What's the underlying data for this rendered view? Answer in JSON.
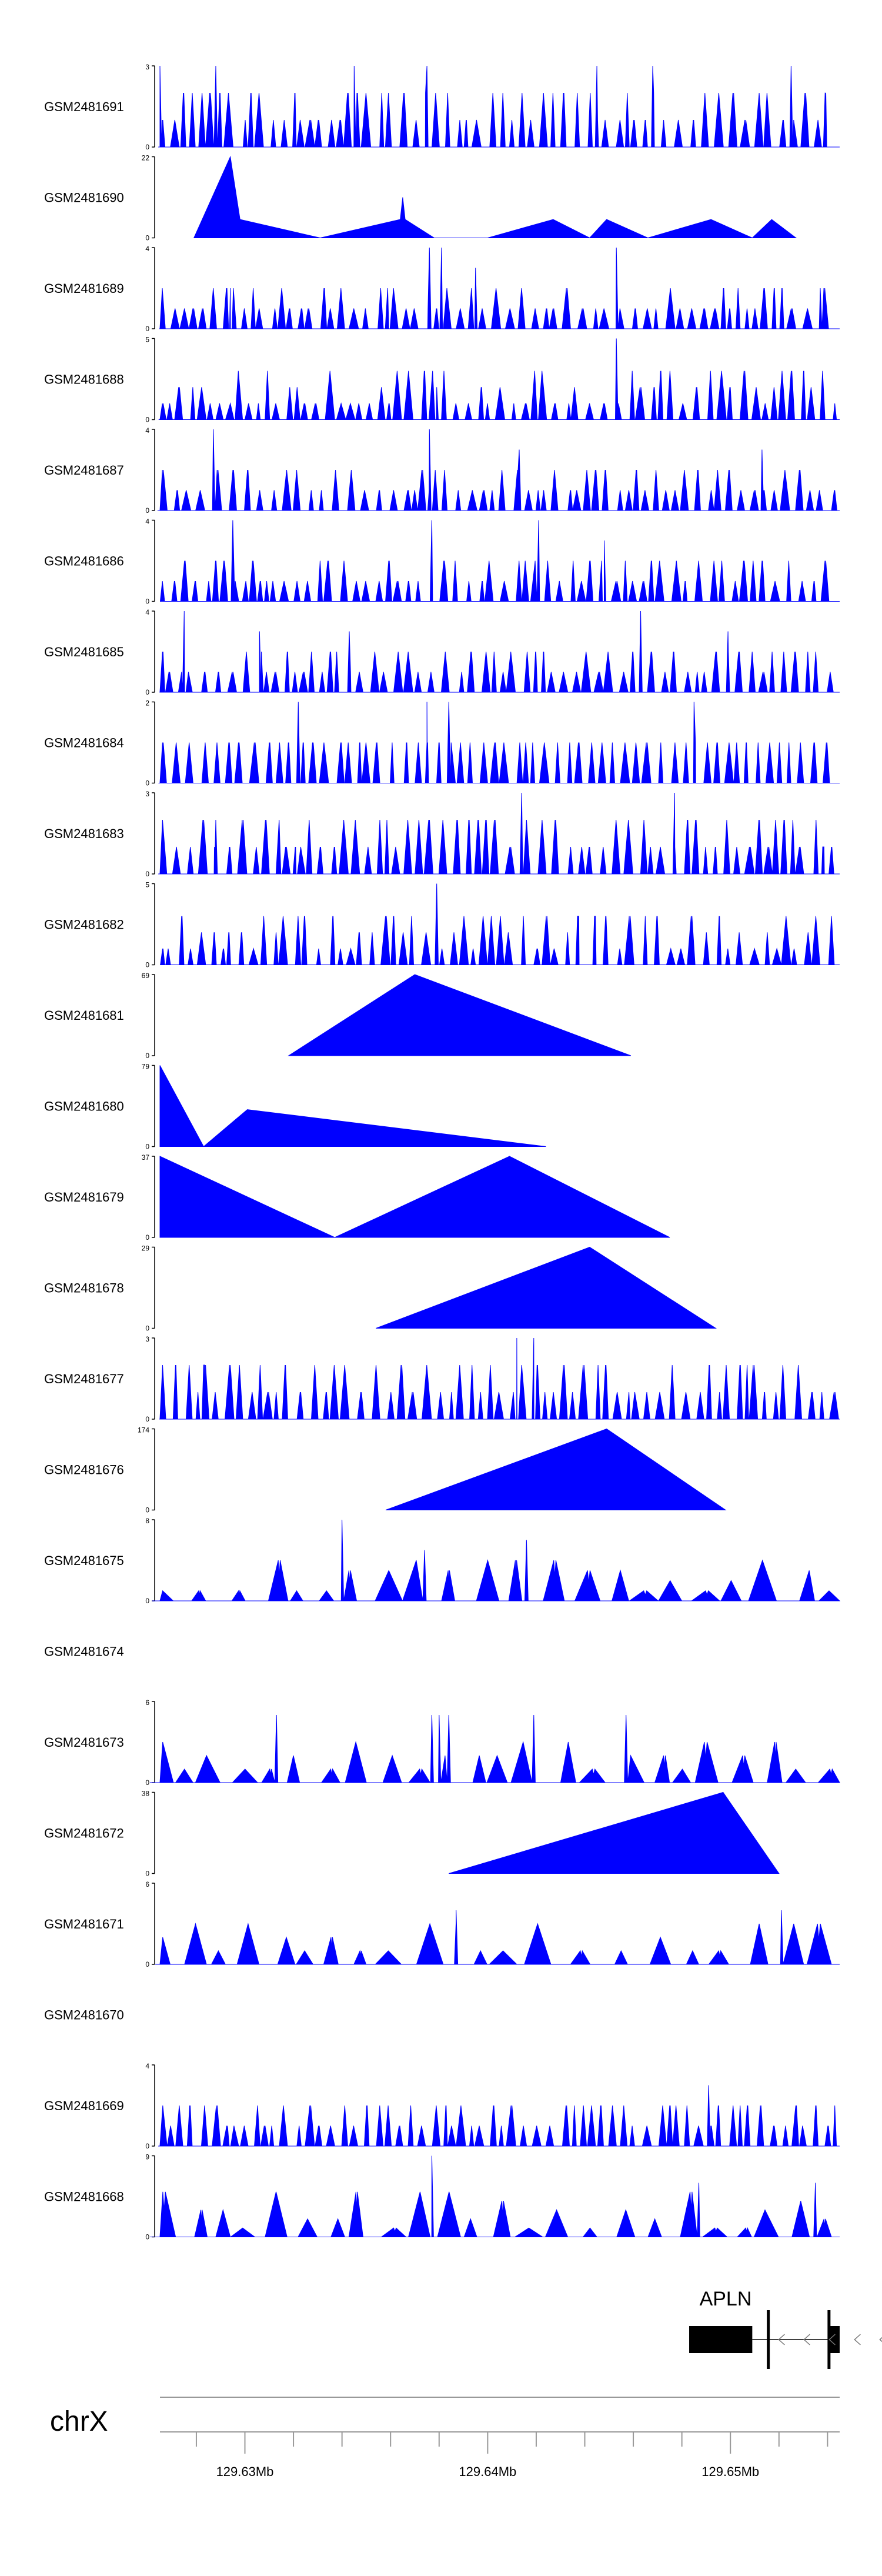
{
  "colors": {
    "signal": "#0000ff",
    "axis": "#000000",
    "gene": "#000000",
    "chrom_line": "#999999"
  },
  "chart_data": {
    "type": "area",
    "title": "",
    "x_range_mb": [
      129.6265,
      129.6545
    ],
    "tracks": [
      {
        "name": "GSM2481691",
        "ymax": "3",
        "pattern": "dense",
        "seed": 11,
        "spikes": [
          [
            129.6265,
            3
          ],
          [
            129.6288,
            3
          ],
          [
            129.6345,
            3
          ],
          [
            129.6375,
            3
          ],
          [
            129.6445,
            3
          ],
          [
            129.6468,
            3
          ],
          [
            129.6525,
            3
          ],
          [
            129.6539,
            2
          ]
        ]
      },
      {
        "name": "GSM2481690",
        "ymax": "22",
        "pattern": "sparse",
        "seed": 0,
        "points": [
          [
            129.6279,
            0
          ],
          [
            129.6294,
            22
          ],
          [
            129.6298,
            5
          ],
          [
            129.6331,
            0
          ],
          [
            129.6364,
            5
          ],
          [
            129.6365,
            11
          ],
          [
            129.6366,
            5
          ],
          [
            129.6378,
            0
          ],
          [
            129.64,
            0
          ],
          [
            129.6427,
            5
          ],
          [
            129.6442,
            0
          ],
          [
            129.6449,
            5
          ],
          [
            129.6466,
            0
          ],
          [
            129.6492,
            5
          ],
          [
            129.6509,
            0
          ],
          [
            129.6517,
            5
          ],
          [
            129.6527,
            0
          ]
        ]
      },
      {
        "name": "GSM2481689",
        "ymax": "4",
        "pattern": "dense",
        "seed": 23,
        "spikes": [
          [
            129.6294,
            2
          ],
          [
            129.6376,
            4
          ],
          [
            129.6381,
            4
          ],
          [
            129.6395,
            3
          ],
          [
            129.6453,
            4
          ],
          [
            129.6537,
            2
          ]
        ]
      },
      {
        "name": "GSM2481688",
        "ymax": "5",
        "pattern": "dense",
        "seed": 37,
        "spikes": [
          [
            129.6379,
            2
          ],
          [
            129.6453,
            5
          ],
          [
            129.6543,
            1
          ]
        ]
      },
      {
        "name": "GSM2481687",
        "ymax": "4",
        "pattern": "dense",
        "seed": 41,
        "spikes": [
          [
            129.6287,
            4
          ],
          [
            129.6376,
            4
          ],
          [
            129.6413,
            3
          ],
          [
            129.6513,
            3
          ]
        ]
      },
      {
        "name": "GSM2481686",
        "ymax": "4",
        "pattern": "dense",
        "seed": 53,
        "spikes": [
          [
            129.6295,
            4
          ],
          [
            129.6377,
            4
          ],
          [
            129.6421,
            4
          ],
          [
            129.6448,
            3
          ]
        ]
      },
      {
        "name": "GSM2481685",
        "ymax": "4",
        "pattern": "dense",
        "seed": 67,
        "spikes": [
          [
            129.6275,
            4
          ],
          [
            129.6306,
            3
          ],
          [
            129.6343,
            3
          ],
          [
            129.6463,
            4
          ],
          [
            129.6499,
            3
          ]
        ]
      },
      {
        "name": "GSM2481684",
        "ymax": "2",
        "pattern": "dense",
        "seed": 71,
        "spikes": [
          [
            129.6322,
            2
          ],
          [
            129.6375,
            2
          ],
          [
            129.6384,
            2
          ],
          [
            129.6485,
            2
          ]
        ]
      },
      {
        "name": "GSM2481683",
        "ymax": "3",
        "pattern": "dense",
        "seed": 83,
        "spikes": [
          [
            129.6288,
            2
          ],
          [
            129.6414,
            3
          ],
          [
            129.6477,
            3
          ],
          [
            129.6538,
            1
          ]
        ]
      },
      {
        "name": "GSM2481682",
        "ymax": "5",
        "pattern": "dense",
        "seed": 97,
        "spikes": [
          [
            129.6379,
            5
          ],
          [
            129.6437,
            3
          ],
          [
            129.6444,
            3
          ]
        ]
      },
      {
        "name": "GSM2481681",
        "ymax": "69",
        "pattern": "sparse",
        "seed": 0,
        "points": [
          [
            129.6318,
            0
          ],
          [
            129.637,
            69
          ],
          [
            129.6459,
            0
          ]
        ]
      },
      {
        "name": "GSM2481680",
        "ymax": "79",
        "pattern": "sparse",
        "seed": 0,
        "points": [
          [
            129.6265,
            79
          ],
          [
            129.6283,
            0
          ],
          [
            129.6301,
            36
          ],
          [
            129.6424,
            0
          ]
        ]
      },
      {
        "name": "GSM2481679",
        "ymax": "37",
        "pattern": "sparse",
        "seed": 0,
        "points": [
          [
            129.6265,
            37
          ],
          [
            129.6337,
            0
          ],
          [
            129.6409,
            37
          ],
          [
            129.6475,
            0
          ]
        ]
      },
      {
        "name": "GSM2481678",
        "ymax": "29",
        "pattern": "sparse",
        "seed": 0,
        "points": [
          [
            129.6354,
            0
          ],
          [
            129.6442,
            29
          ],
          [
            129.6494,
            0
          ]
        ]
      },
      {
        "name": "GSM2481677",
        "ymax": "3",
        "pattern": "dense",
        "seed": 101,
        "spikes": [
          [
            129.6283,
            2
          ],
          [
            129.6412,
            3
          ],
          [
            129.6419,
            3
          ]
        ]
      },
      {
        "name": "GSM2481676",
        "ymax": "174",
        "pattern": "sparse",
        "seed": 0,
        "points": [
          [
            129.6358,
            0
          ],
          [
            129.6449,
            174
          ],
          [
            129.6498,
            0
          ]
        ]
      },
      {
        "name": "GSM2481675",
        "ymax": "8",
        "pattern": "moderate",
        "seed": 113,
        "spikes": [
          [
            129.634,
            8
          ],
          [
            129.6374,
            5
          ],
          [
            129.6416,
            6
          ]
        ]
      },
      {
        "name": "GSM2481674",
        "ymax": "",
        "pattern": "empty",
        "seed": 0
      },
      {
        "name": "GSM2481673",
        "ymax": "6",
        "pattern": "moderate",
        "seed": 127,
        "spikes": [
          [
            129.6313,
            5
          ],
          [
            129.6377,
            5
          ],
          [
            129.638,
            5
          ],
          [
            129.6384,
            5
          ],
          [
            129.6419,
            5
          ],
          [
            129.6457,
            5
          ]
        ]
      },
      {
        "name": "GSM2481672",
        "ymax": "38",
        "pattern": "sparse",
        "seed": 0,
        "points": [
          [
            129.6384,
            0
          ],
          [
            129.6497,
            38
          ],
          [
            129.652,
            0
          ]
        ]
      },
      {
        "name": "GSM2481671",
        "ymax": "6",
        "pattern": "moderate",
        "seed": 131,
        "spikes": [
          [
            129.6387,
            4
          ],
          [
            129.6521,
            4
          ]
        ]
      },
      {
        "name": "GSM2481670",
        "ymax": "",
        "pattern": "empty",
        "seed": 0
      },
      {
        "name": "GSM2481669",
        "ymax": "4",
        "pattern": "dense",
        "seed": 139,
        "spikes": [
          [
            129.6491,
            3
          ],
          [
            129.6543,
            2
          ]
        ]
      },
      {
        "name": "GSM2481668",
        "ymax": "9",
        "pattern": "moderate",
        "seed": 149,
        "spikes": [
          [
            129.6377,
            9
          ],
          [
            129.6487,
            6
          ],
          [
            129.6535,
            6
          ]
        ]
      }
    ],
    "gene": {
      "name": "APLN",
      "strand": "-",
      "exons_mb": [
        [
          129.6483,
          129.6509
        ],
        [
          129.6515,
          129.6516
        ],
        [
          129.654,
          129.6541
        ],
        [
          129.6541,
          129.6545
        ]
      ],
      "line_mb": [
        129.6509,
        129.6541
      ]
    },
    "axis": {
      "chromosome": "chrX",
      "tick_labels": [
        "129.63Mb",
        "129.64Mb",
        "129.65Mb"
      ],
      "major_ticks_mb": [
        129.63,
        129.64,
        129.65
      ],
      "minor_ticks_mb": [
        129.628,
        129.632,
        129.634,
        129.636,
        129.638,
        129.642,
        129.644,
        129.646,
        129.648,
        129.652,
        129.654
      ]
    }
  }
}
